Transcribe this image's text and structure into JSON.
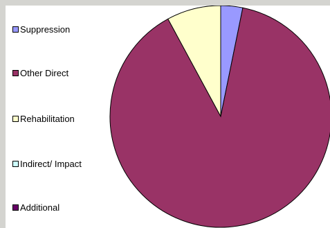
{
  "chart_data": {
    "type": "pie",
    "title": "",
    "start_angle_deg": 0,
    "direction": "clockwise",
    "slices": [
      {
        "label": "Suppression",
        "value": 3.2,
        "color": "#9999ff"
      },
      {
        "label": "Other Direct",
        "value": 88.9,
        "color": "#993366"
      },
      {
        "label": "Rehabilitation",
        "value": 7.9,
        "color": "#ffffcc"
      },
      {
        "label": "Indirect/ Impact",
        "value": 0,
        "color": "#ccffff"
      },
      {
        "label": "Additional",
        "value": 0,
        "color": "#660066"
      }
    ],
    "legend_placement": "left"
  }
}
